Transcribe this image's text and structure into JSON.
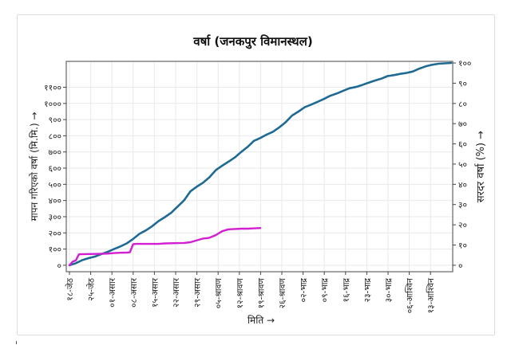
{
  "chart_data": {
    "type": "line",
    "title": "वर्षा (जनकपुर विमानस्थल)",
    "xlabel": "मिति →",
    "ylabel": "मापन गरिएको वर्षा (मि.मि.) →",
    "y2label": "सरदर वर्षा (%) →",
    "categories": [
      "१८-जेठ",
      "२५-जेठ",
      "०१-असार",
      "०८-असार",
      "१५-असार",
      "२२-असार",
      "२९-असार",
      "०५-श्रावण",
      "१२-श्रावण",
      "१९-श्रावण",
      "२६-श्रावण",
      "०२-भाद्र",
      "०९-भाद्र",
      "१६-भाद्र",
      "२३-भाद्र",
      "३०-भाद्र",
      "०६-आश्विन",
      "१३-आश्विन"
    ],
    "ylim": [
      -40,
      1260
    ],
    "y2lim": [
      -3.2,
      100.8
    ],
    "yticks": [
      0,
      100,
      200,
      300,
      400,
      500,
      600,
      700,
      800,
      900,
      1000,
      1100
    ],
    "yticklabels": [
      "०",
      "१००",
      "२००",
      "३००",
      "४००",
      "५००",
      "६००",
      "७००",
      "८००",
      "९००",
      "१०००",
      "११००"
    ],
    "y2ticks": [
      0,
      10,
      20,
      30,
      40,
      50,
      60,
      70,
      80,
      90,
      100
    ],
    "y2ticklabels": [
      "०",
      "१०",
      "२०",
      "३०",
      "४०",
      "५०",
      "६०",
      "७०",
      "८०",
      "९०",
      "१००"
    ],
    "grid": true,
    "series": [
      {
        "name": "",
        "axis": "right",
        "color": "#1f6a94",
        "x": [
          0,
          2,
          4,
          6,
          8,
          10,
          12,
          14,
          16,
          18,
          20,
          22,
          24,
          26,
          28,
          30,
          32,
          34,
          36,
          38,
          40,
          42,
          44,
          46,
          48,
          50,
          52,
          54,
          56,
          58,
          60,
          62,
          64,
          66,
          68,
          70,
          72,
          74,
          76,
          78,
          80,
          82,
          84,
          86,
          88,
          90,
          92,
          94,
          96,
          98,
          100,
          102,
          104,
          106,
          108,
          110,
          112,
          114,
          116,
          118,
          120
        ],
        "values": [
          0,
          1,
          2.5,
          3.5,
          4.3,
          5.5,
          6.6,
          8,
          9.3,
          10.8,
          13,
          15.5,
          17.2,
          19.3,
          21.8,
          23.8,
          26,
          29,
          32,
          36.5,
          38.8,
          40.8,
          43.5,
          47,
          49.2,
          51.2,
          53.3,
          56,
          58.5,
          61.5,
          62.9,
          64.6,
          66,
          68.2,
          70.8,
          74,
          76,
          78.2,
          79.4,
          80.8,
          82.2,
          83.8,
          84.9,
          86.2,
          87.5,
          88.1,
          89.1,
          90.2,
          91.3,
          92.2,
          93.5,
          94,
          94.6,
          95.1,
          95.8,
          97.2,
          98.3,
          99.1,
          99.6,
          99.8,
          100
        ]
      },
      {
        "name": "",
        "axis": "left",
        "color": "#d21fd2",
        "x": [
          0,
          1,
          2,
          2.5,
          3,
          8,
          12,
          14,
          16,
          18,
          19,
          20,
          21,
          28,
          30,
          34,
          36,
          38,
          42,
          44,
          46,
          48,
          50,
          52,
          54,
          56,
          58,
          60
        ],
        "values": [
          0,
          22,
          30,
          50,
          68,
          70,
          72,
          75,
          77,
          78,
          80,
          130,
          132,
          132,
          135,
          137,
          138,
          142,
          165,
          170,
          186,
          210,
          222,
          224,
          226,
          226,
          228,
          230
        ]
      }
    ]
  }
}
